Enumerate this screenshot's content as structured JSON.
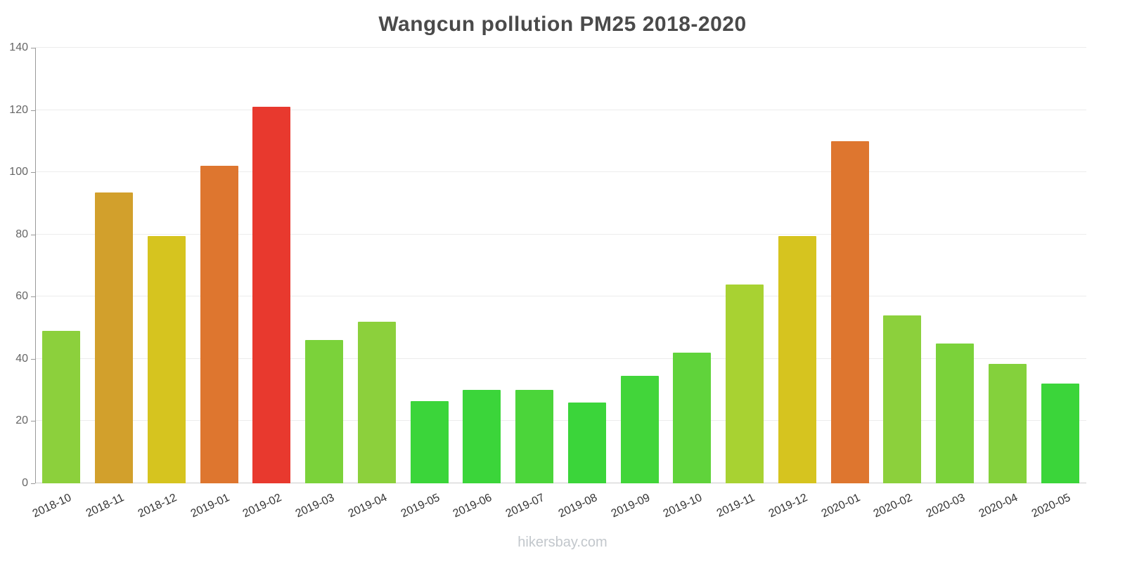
{
  "chart_data": {
    "type": "bar",
    "title": "Wangcun pollution PM25 2018-2020",
    "categories": [
      "2018-10",
      "2018-11",
      "2018-12",
      "2019-01",
      "2019-02",
      "2019-03",
      "2019-04",
      "2019-05",
      "2019-06",
      "2019-07",
      "2019-08",
      "2019-09",
      "2019-10",
      "2019-11",
      "2019-12",
      "2020-01",
      "2020-02",
      "2020-03",
      "2020-04",
      "2020-05"
    ],
    "values": [
      49,
      93.5,
      79.5,
      102,
      121,
      46,
      52,
      26.5,
      30,
      30,
      26,
      34.5,
      42,
      64,
      79.5,
      110,
      54,
      45,
      38.5,
      32
    ],
    "colors": [
      "#8CD03C",
      "#D2A02C",
      "#D6C41F",
      "#DE762F",
      "#E8392E",
      "#7BD23A",
      "#8CD03C",
      "#3BD53A",
      "#3BD53A",
      "#4BD53A",
      "#3BD53A",
      "#42D53A",
      "#60D33B",
      "#A8D232",
      "#D6C41F",
      "#DE762F",
      "#8CD03C",
      "#7BD23A",
      "#84D13C",
      "#3BD53A"
    ],
    "xlabel": "",
    "ylabel": "",
    "ylim": [
      0,
      140
    ],
    "yticks": [
      0,
      20,
      40,
      60,
      80,
      100,
      120,
      140
    ],
    "grid": true,
    "legend": false
  },
  "footer": {
    "text": "hikersbay.com"
  }
}
